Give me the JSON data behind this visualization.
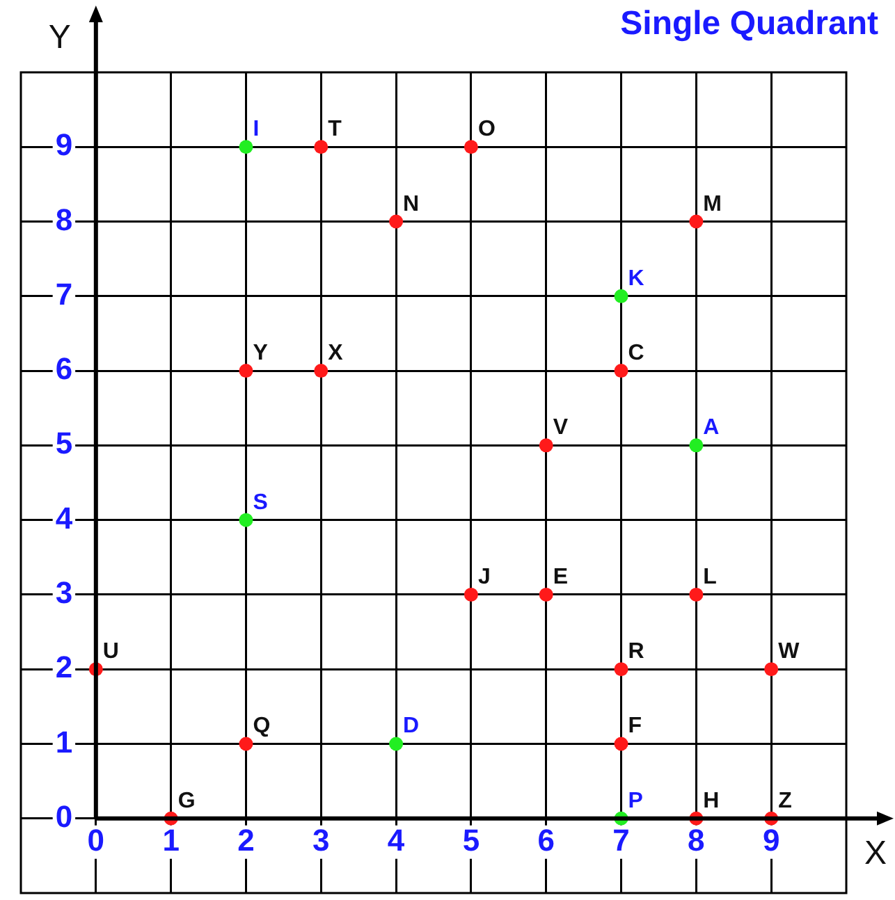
{
  "chart_data": {
    "type": "scatter",
    "title": "Single Quadrant",
    "xlabel": "X",
    "ylabel": "Y",
    "xlim": [
      -1,
      10
    ],
    "ylim": [
      -1,
      10
    ],
    "xticks": [
      0,
      1,
      2,
      3,
      4,
      5,
      6,
      7,
      8,
      9
    ],
    "yticks": [
      0,
      1,
      2,
      3,
      4,
      5,
      6,
      7,
      8,
      9
    ],
    "grid": true,
    "marker": "circle",
    "series": [
      {
        "color": "#ff1a1a",
        "x": [
          3,
          5,
          4,
          8,
          2,
          3,
          7,
          6,
          5,
          6,
          8,
          0,
          7,
          9,
          2,
          7,
          1,
          8,
          9
        ],
        "values": [
          9,
          9,
          8,
          8,
          6,
          6,
          6,
          5,
          3,
          3,
          3,
          2,
          2,
          2,
          1,
          1,
          0,
          0,
          0
        ],
        "value_labels": [
          "T",
          "O",
          "N",
          "M",
          "Y",
          "X",
          "C",
          "V",
          "J",
          "E",
          "L",
          "U",
          "R",
          "W",
          "Q",
          "F",
          "G",
          "H",
          "Z"
        ]
      },
      {
        "color": "#22ee22",
        "x": [
          2,
          7,
          8,
          2,
          4,
          7
        ],
        "values": [
          9,
          7,
          5,
          4,
          1,
          0
        ],
        "value_labels": [
          "I",
          "K",
          "A",
          "S",
          "D",
          "P"
        ]
      }
    ]
  }
}
